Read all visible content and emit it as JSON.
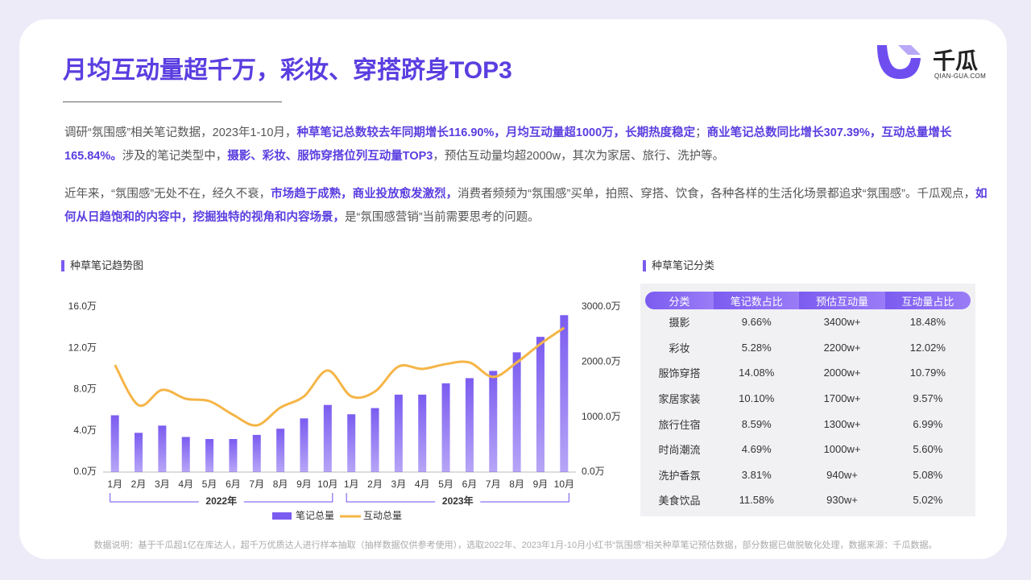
{
  "header": {
    "title": "月均互动量超千万，彩妆、穿搭跻身TOP3",
    "logo_name": "千瓜",
    "logo_site": "QIAN-GUA.COM"
  },
  "paragraphs": [
    {
      "segments": [
        {
          "text": "调研“氛围感”相关笔记数据，2023年1-10月，",
          "bold": false
        },
        {
          "text": "种草笔记总数较去年同期增长116.90%，月均互动量超1000万，长期热度稳定",
          "bold": true
        },
        {
          "text": "；",
          "bold": false
        },
        {
          "text": "商业笔记总数同比增长307.39%，互动总量增长165.84%。",
          "bold": true
        },
        {
          "text": "涉及的笔记类型中，",
          "bold": false
        },
        {
          "text": "摄影、彩妆、服饰穿搭位列互动量TOP3",
          "bold": true
        },
        {
          "text": "，预估互动量均超2000w，其次为家居、旅行、洗护等。",
          "bold": false
        }
      ]
    },
    {
      "segments": [
        {
          "text": "近年来，“氛围感”无处不在，经久不衰，",
          "bold": false
        },
        {
          "text": "市场趋于成熟，商业投放愈发激烈，",
          "bold": true
        },
        {
          "text": "消费者频频为“氛围感”买单，拍照、穿搭、饮食，各种各样的生活化场景都追求“氛围感”。千瓜观点，",
          "bold": false
        },
        {
          "text": "如何从日趋饱和的内容中，挖掘独特的视角和内容场景，",
          "bold": true
        },
        {
          "text": "是“氛围感营销”当前需要思考的问题。",
          "bold": false
        }
      ]
    }
  ],
  "chart_data": {
    "type": "combo",
    "title": "种草笔记趋势图",
    "categories": [
      "1月",
      "2月",
      "3月",
      "4月",
      "5月",
      "6月",
      "7月",
      "8月",
      "9月",
      "10月",
      "1月",
      "2月",
      "3月",
      "4月",
      "5月",
      "6月",
      "7月",
      "8月",
      "9月",
      "10月"
    ],
    "groups": [
      "2022年",
      "2023年"
    ],
    "series": [
      {
        "name": "笔记总量",
        "type": "bar",
        "color": "#7b5cf0",
        "values": [
          5.5,
          3.8,
          4.5,
          3.4,
          3.2,
          3.2,
          3.6,
          4.2,
          5.2,
          6.5,
          5.6,
          6.2,
          7.5,
          7.5,
          8.6,
          9.1,
          9.8,
          11.6,
          13.1,
          15.2
        ]
      },
      {
        "name": "互动总量",
        "type": "line",
        "axis": "y2",
        "color": "#f5b547",
        "values": [
          1947,
          1215,
          1493,
          1332,
          1288,
          1040,
          849,
          1171,
          1376,
          1845,
          1376,
          1464,
          1918,
          1874,
          1962,
          1991,
          1728,
          1991,
          2328,
          2621
        ]
      }
    ],
    "ylim": [
      0,
      16
    ],
    "yticks": [
      {
        "value": 0,
        "label": "0.0万"
      },
      {
        "value": 4,
        "label": "4.0万"
      },
      {
        "value": 8,
        "label": "8.0万"
      },
      {
        "value": 12,
        "label": "12.0万"
      },
      {
        "value": 16,
        "label": "16.0万"
      }
    ],
    "y2lim": [
      0,
      3000
    ],
    "y2ticks": [
      {
        "value": 0,
        "label": "0.0万"
      },
      {
        "value": 1000,
        "label": "1000.0万"
      },
      {
        "value": 2000,
        "label": "2000.0万"
      },
      {
        "value": 3000,
        "label": "3000.0万"
      }
    ]
  },
  "table": {
    "title": "种草笔记分类",
    "header": [
      "分类",
      "笔记数占比",
      "预估互动量",
      "互动量占比"
    ],
    "rows": [
      [
        "摄影",
        "9.66%",
        "3400w+",
        "18.48%"
      ],
      [
        "彩妆",
        "5.28%",
        "2200w+",
        "12.02%"
      ],
      [
        "服饰穿搭",
        "14.08%",
        "2000w+",
        "10.79%"
      ],
      [
        "家居家装",
        "10.10%",
        "1700w+",
        "9.57%"
      ],
      [
        "旅行住宿",
        "8.59%",
        "1300w+",
        "6.99%"
      ],
      [
        "时尚潮流",
        "4.69%",
        "1000w+",
        "5.60%"
      ],
      [
        "洗护香氛",
        "3.81%",
        "940w+",
        "5.08%"
      ],
      [
        "美食饮品",
        "11.58%",
        "930w+",
        "5.02%"
      ]
    ]
  },
  "footnote": "数据说明：基于千瓜超1亿在库达人，超千万优质达人进行样本抽取（抽样数据仅供参考使用），选取2022年、2023年1月-10月小红书“氛围感”相关种草笔记预估数据，部分数据已做脱敏化处理，数据来源：千瓜数据。"
}
